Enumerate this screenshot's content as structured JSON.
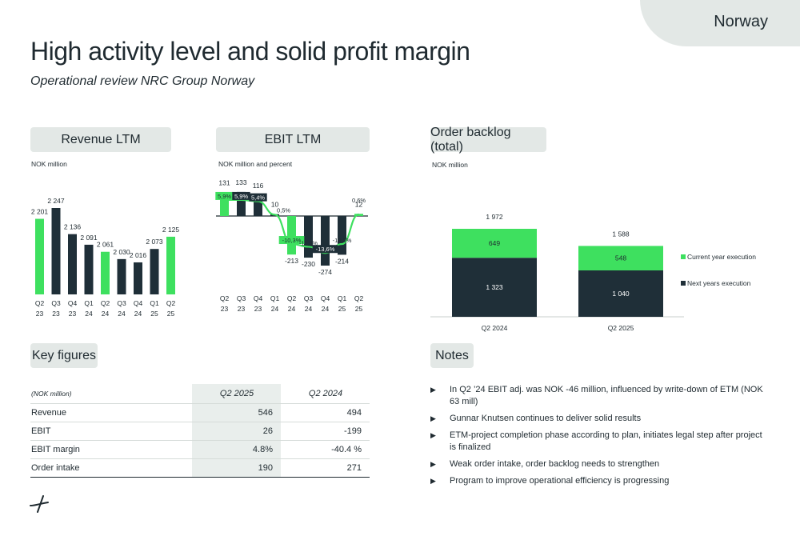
{
  "page": {
    "country": "Norway",
    "title": "High activity level and solid profit margin",
    "subtitle": "Operational review NRC Group Norway"
  },
  "sections": {
    "revenue": "Revenue LTM",
    "ebit": "EBIT LTM",
    "backlog": "Order backlog (total)",
    "keyfigures": "Key figures",
    "notes": "Notes"
  },
  "units": {
    "revenue": "NOK million",
    "ebit": "NOK million and percent",
    "backlog": "NOK million"
  },
  "chart_data": [
    {
      "type": "bar",
      "title": "Revenue LTM",
      "categories": [
        "Q2 23",
        "Q3 23",
        "Q4 23",
        "Q1 24",
        "Q2 24",
        "Q3 24",
        "Q4 24",
        "Q1 25",
        "Q2 25"
      ],
      "values": [
        2201,
        2247,
        2136,
        2091,
        2061,
        2030,
        2016,
        2073,
        2125
      ],
      "labels": [
        "2 201",
        "2 247",
        "2 136",
        "2 091",
        "2 061",
        "2 030",
        "2 016",
        "2 073",
        "2 125"
      ],
      "highlight": [
        true,
        false,
        false,
        false,
        true,
        false,
        false,
        false,
        true
      ]
    },
    {
      "type": "bar",
      "title": "EBIT LTM",
      "categories": [
        "Q2 23",
        "Q3 23",
        "Q4 23",
        "Q1 24",
        "Q2 24",
        "Q3 24",
        "Q4 24",
        "Q1 25",
        "Q2 25"
      ],
      "series": [
        {
          "values": [
            131,
            133,
            116,
            10,
            -213,
            -230,
            -274,
            -214,
            12
          ],
          "labels": [
            "131",
            "133",
            "116",
            "10",
            "-213",
            "-230",
            "-274",
            "-214",
            "12"
          ]
        },
        {
          "values": [
            5.9,
            5.9,
            5.4,
            0.5,
            -10.3,
            -11.3,
            -13.6,
            -10.3,
            0.6
          ],
          "labels": [
            "5,9%",
            "5,9%",
            "5,4%",
            "0,5%",
            "-10,3%",
            "-11,3%",
            "-13,6%",
            "-10,3%",
            "0,6%"
          ]
        }
      ],
      "highlight": [
        true,
        false,
        false,
        false,
        true,
        false,
        false,
        false,
        true
      ]
    },
    {
      "type": "bar",
      "title": "Order backlog (total)",
      "stacked": true,
      "categories": [
        "Q2 2024",
        "Q2 2025"
      ],
      "series": [
        {
          "name": "Next years execution",
          "values": [
            1323,
            1040
          ],
          "labels": [
            "1 323",
            "1 040"
          ]
        },
        {
          "name": "Current year execution",
          "values": [
            649,
            548
          ],
          "labels": [
            "649",
            "548"
          ]
        }
      ],
      "totals": [
        1972,
        1588
      ],
      "total_labels": [
        "1 972",
        "1 588"
      ],
      "legend": "right"
    }
  ],
  "key_figures": {
    "header": {
      "label": "(NOK million)",
      "col1": "Q2 2025",
      "col2": "Q2 2024"
    },
    "rows": [
      {
        "label": "Revenue",
        "v1": "546",
        "v2": "494"
      },
      {
        "label": "EBIT",
        "v1": "26",
        "v2": "-199"
      },
      {
        "label": "EBIT margin",
        "v1": "4.8%",
        "v2": "-40.4 %"
      },
      {
        "label": "Order intake",
        "v1": "190",
        "v2": "271"
      }
    ]
  },
  "notes": [
    "In Q2 ’24 EBIT adj. was NOK -46 million, influenced by write-down of ETM (NOK 63 mill)",
    "Gunnar Knutsen continues to deliver solid results",
    "ETM-project completion phase according to plan, initiates legal step after project is finalized",
    "Weak order intake, order backlog needs to strengthen",
    "Program to improve operational efficiency is progressing"
  ],
  "colors": {
    "green": "#3ee05f",
    "dark": "#1f2f38",
    "pill": "#e3e8e6"
  },
  "icons": {
    "bullet": "triangle-right-icon",
    "logo": "nrc-logo-icon"
  }
}
